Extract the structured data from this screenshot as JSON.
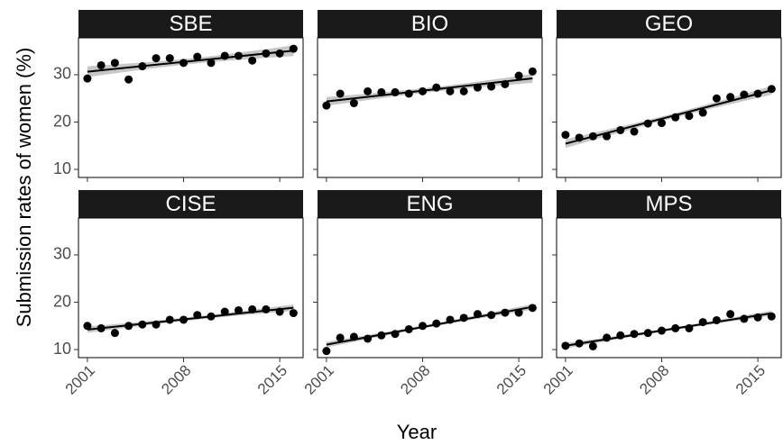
{
  "chart_data": {
    "type": "scatter",
    "x_label": "Year",
    "y_label": "Submission rates of women (%)",
    "x": [
      2001,
      2002,
      2003,
      2004,
      2005,
      2006,
      2007,
      2008,
      2009,
      2010,
      2011,
      2012,
      2013,
      2014,
      2015,
      2016
    ],
    "xlim": [
      2000.35,
      2016.7
    ],
    "xticks": [
      2001,
      2008,
      2015
    ],
    "ylim": [
      8.3,
      37.8
    ],
    "yticks": [
      10,
      20,
      30
    ],
    "trend": true,
    "point_color": "#000000",
    "header_color": "#1a1a1a",
    "series": [
      {
        "name": "SBE",
        "color": "#000000",
        "values": [
          29.2,
          32,
          32.5,
          29,
          31.8,
          33.5,
          33.5,
          32.5,
          33.8,
          32.5,
          34,
          34,
          33,
          34.5,
          34.5,
          35.5
        ]
      },
      {
        "name": "BIO",
        "color": "#000000",
        "values": [
          23.5,
          26,
          24,
          26.5,
          26.3,
          26.3,
          26,
          26.5,
          27.3,
          26.5,
          26.5,
          27.3,
          27.5,
          28,
          29.8,
          30.7
        ]
      },
      {
        "name": "GEO",
        "color": "#000000",
        "values": [
          17.3,
          16.7,
          17,
          17,
          18.3,
          18,
          19.7,
          19.8,
          21,
          21.3,
          22,
          25,
          25.3,
          25.8,
          26,
          27
        ]
      },
      {
        "name": "CISE",
        "color": "#000000",
        "values": [
          15,
          14.5,
          13.5,
          15,
          15.3,
          15.3,
          16.3,
          16.3,
          17.3,
          17,
          18,
          18.3,
          18.5,
          18.5,
          18,
          17.7
        ]
      },
      {
        "name": "ENG",
        "color": "#000000",
        "values": [
          9.7,
          12.5,
          12.7,
          12.3,
          13,
          13.3,
          14.3,
          15,
          15.5,
          16.3,
          16.7,
          17.5,
          17.3,
          17.8,
          17.8,
          18.8
        ]
      },
      {
        "name": "MPS",
        "color": "#000000",
        "values": [
          10.8,
          11.3,
          10.7,
          12.5,
          13,
          13.3,
          13.5,
          14,
          14.5,
          14.5,
          15.8,
          16.2,
          17.5,
          16.5,
          16.8,
          17
        ]
      }
    ]
  }
}
